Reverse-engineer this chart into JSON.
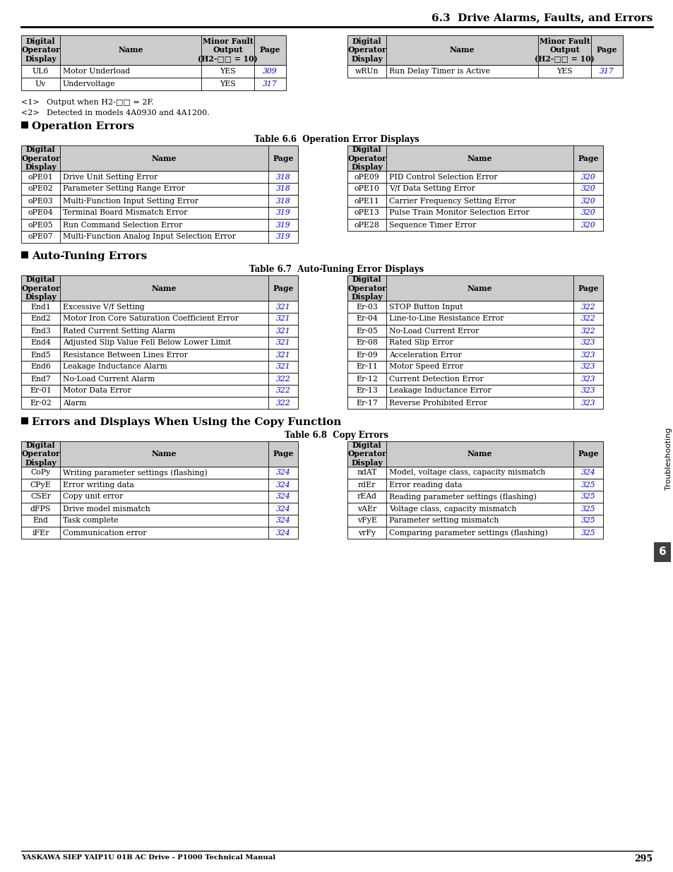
{
  "page_title": "6.3  Drive Alarms, Faults, and Errors",
  "page_number": "295",
  "footer_left": "YASKAWA SIEP YAIP1U 01B AC Drive - P1000 Technical Manual",
  "side_label": "Troubleshooting",
  "section_num": "6",
  "header_bg": "#cccccc",
  "footnotes": [
    "<1>   Output when H2-□□ = 2F.",
    "<2>   Detected in models 4A0930 and 4A1200."
  ],
  "top_table": {
    "left_rows": [
      [
        "UL6",
        "Motor Underload",
        "YES",
        "309"
      ],
      [
        "Uv",
        "Undervoltage",
        "YES",
        "317"
      ]
    ],
    "right_rows": [
      [
        "wRUn",
        "Run Delay Timer is Active",
        "YES",
        "317"
      ]
    ]
  },
  "section1_title": "Operation Errors",
  "table66_caption": "Table 6.6  Operation Error Displays",
  "table66_left": [
    [
      "oPE01",
      "Drive Unit Setting Error",
      "318"
    ],
    [
      "oPE02",
      "Parameter Setting Range Error",
      "318"
    ],
    [
      "oPE03",
      "Multi-Function Input Setting Error",
      "318"
    ],
    [
      "oPE04",
      "Terminal Board Mismatch Error",
      "319"
    ],
    [
      "oPE05",
      "Run Command Selection Error",
      "319"
    ],
    [
      "oPE07",
      "Multi-Function Analog Input Selection Error",
      "319"
    ]
  ],
  "table66_right": [
    [
      "oPE09",
      "PID Control Selection Error",
      "320"
    ],
    [
      "oPE10",
      "V/f Data Setting Error",
      "320"
    ],
    [
      "oPE11",
      "Carrier Frequency Setting Error",
      "320"
    ],
    [
      "oPE13",
      "Pulse Train Monitor Selection Error",
      "320"
    ],
    [
      "oPE28",
      "Sequence Timer Error",
      "320"
    ]
  ],
  "section2_title": "Auto-Tuning Errors",
  "table67_caption": "Table 6.7  Auto-Tuning Error Displays",
  "table67_left": [
    [
      "End1",
      "Excessive V/f Setting",
      "321"
    ],
    [
      "End2",
      "Motor Iron Core Saturation Coefficient Error",
      "321"
    ],
    [
      "End3",
      "Rated Current Setting Alarm",
      "321"
    ],
    [
      "End4",
      "Adjusted Slip Value Fell Below Lower Limit",
      "321"
    ],
    [
      "End5",
      "Resistance Between Lines Error",
      "321"
    ],
    [
      "End6",
      "Leakage Inductance Alarm",
      "321"
    ],
    [
      "End7",
      "No-Load Current Alarm",
      "322"
    ],
    [
      "Er-01",
      "Motor Data Error",
      "322"
    ],
    [
      "Er-02",
      "Alarm",
      "322"
    ]
  ],
  "table67_right": [
    [
      "Er-03",
      "STOP Button Input",
      "322"
    ],
    [
      "Er-04",
      "Line-to-Line Resistance Error",
      "322"
    ],
    [
      "Er-05",
      "No-Load Current Error",
      "322"
    ],
    [
      "Er-08",
      "Rated Slip Error",
      "323"
    ],
    [
      "Er-09",
      "Acceleration Error",
      "323"
    ],
    [
      "Er-11",
      "Motor Speed Error",
      "323"
    ],
    [
      "Er-12",
      "Current Detection Error",
      "323"
    ],
    [
      "Er-13",
      "Leakage Inductance Error",
      "323"
    ],
    [
      "Er-17",
      "Reverse Prohibited Error",
      "323"
    ]
  ],
  "section3_title": "Errors and Displays When Using the Copy Function",
  "table68_caption": "Table 6.8  Copy Errors",
  "table68_left": [
    [
      "CoPy",
      "Writing parameter settings (flashing)",
      "324"
    ],
    [
      "CPyE",
      "Error writing data",
      "324"
    ],
    [
      "CSEr",
      "Copy unit error",
      "324"
    ],
    [
      "dFPS",
      "Drive model mismatch",
      "324"
    ],
    [
      "End",
      "Task complete",
      "324"
    ],
    [
      "iFEr",
      "Communication error",
      "324"
    ]
  ],
  "table68_right": [
    [
      "ndAT",
      "Model, voltage class, capacity mismatch",
      "324"
    ],
    [
      "rdEr",
      "Error reading data",
      "325"
    ],
    [
      "rEAd",
      "Reading parameter settings (flashing)",
      "325"
    ],
    [
      "vAEr",
      "Voltage class, capacity mismatch",
      "325"
    ],
    [
      "vFyE",
      "Parameter setting mismatch",
      "325"
    ],
    [
      "vrFy",
      "Comparing parameter settings (flashing)",
      "325"
    ]
  ]
}
